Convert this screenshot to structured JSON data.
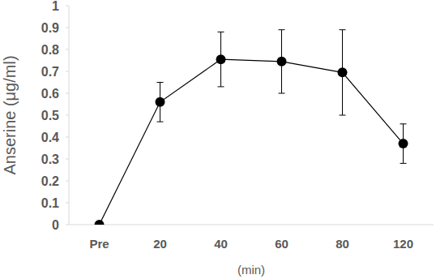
{
  "chart_data": {
    "type": "line",
    "y_label": "Anserine (μg/ml)",
    "x_label": "(min)",
    "categories": [
      "Pre",
      "20",
      "40",
      "60",
      "80",
      "120"
    ],
    "values": [
      0,
      0.56,
      0.755,
      0.745,
      0.695,
      0.37
    ],
    "errors": [
      0,
      0.09,
      0.125,
      0.145,
      0.195,
      0.09
    ],
    "color": "#000000",
    "marker": "circle",
    "line_style": "solid",
    "grid": false,
    "ylim": [
      0,
      1
    ],
    "yticks": [
      0,
      0.1,
      0.2,
      0.3,
      0.4,
      0.5,
      0.6,
      0.7,
      0.8,
      0.9,
      1
    ]
  }
}
